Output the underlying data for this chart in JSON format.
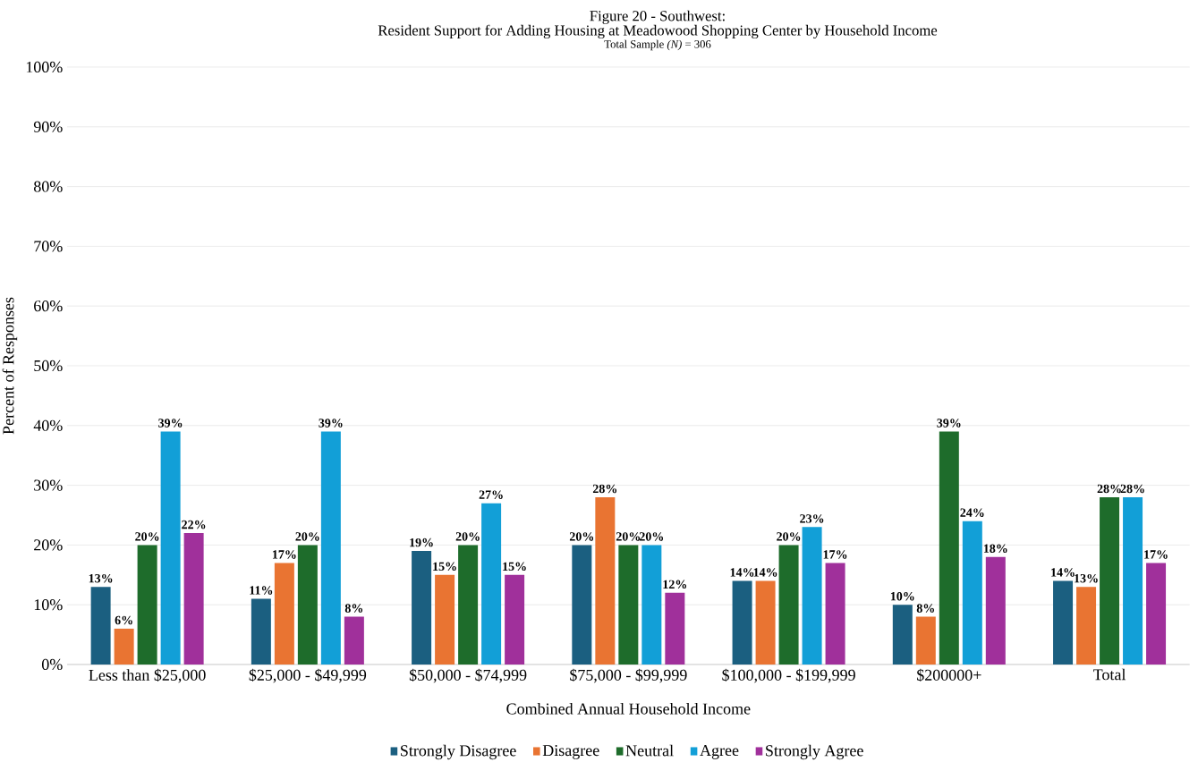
{
  "chart_data": {
    "type": "bar",
    "title": "Figure 20 - Southwest:",
    "subtitle": "Resident Support for Adding Housing at Meadowood Shopping Center by Household Income",
    "annotations": [
      "Total Sample *(N)* = 306"
    ],
    "xlabel": "Combined Annual Household Income",
    "ylabel": "Percent of Responses",
    "categories": [
      "Less than $25,000",
      "$25,000 - $49,999",
      "$50,000 - $74,999",
      "$75,000 - $99,999",
      "$100,000 - $199,999",
      "$200000+",
      "Total"
    ],
    "series": [
      {
        "name": "Strongly Disagree",
        "color": "#1b5f80",
        "values": [
          13,
          11,
          19,
          20,
          14,
          10,
          14
        ],
        "value_labels": [
          "13%",
          "11%",
          "19%",
          "20%",
          "14%",
          "10%",
          "14%"
        ]
      },
      {
        "name": "Disagree",
        "color": "#e97432",
        "values": [
          6,
          17,
          15,
          28,
          14,
          8,
          13
        ],
        "value_labels": [
          "6%",
          "17%",
          "15%",
          "28%",
          "14%",
          "8%",
          "13%"
        ]
      },
      {
        "name": "Neutral",
        "color": "#1e6c2b",
        "values": [
          20,
          20,
          20,
          20,
          20,
          39,
          28
        ],
        "value_labels": [
          "20%",
          "20%",
          "20%",
          "20%",
          "20%",
          "39%",
          "28%"
        ]
      },
      {
        "name": "Agree",
        "color": "#129fd7",
        "values": [
          39,
          39,
          27,
          20,
          23,
          24,
          28
        ],
        "value_labels": [
          "39%",
          "39%",
          "27%",
          "20%",
          "23%",
          "24%",
          "28%"
        ]
      },
      {
        "name": "Strongly Agree",
        "color": "#a0309b",
        "values": [
          22,
          8,
          15,
          12,
          17,
          18,
          17
        ],
        "value_labels": [
          "22%",
          "8%",
          "15%",
          "12%",
          "17%",
          "18%",
          "17%"
        ]
      }
    ],
    "ylim": [
      0,
      100
    ],
    "yticks": [
      {
        "value": 0,
        "label": "0%"
      },
      {
        "value": 10,
        "label": "10%"
      },
      {
        "value": 20,
        "label": "20%"
      },
      {
        "value": 30,
        "label": "30%"
      },
      {
        "value": 40,
        "label": "40%"
      },
      {
        "value": 50,
        "label": "50%"
      },
      {
        "value": 60,
        "label": "60%"
      },
      {
        "value": 70,
        "label": "70%"
      },
      {
        "value": 80,
        "label": "80%"
      },
      {
        "value": 90,
        "label": "90%"
      },
      {
        "value": 100,
        "label": "100%"
      }
    ],
    "grid": "y",
    "legend": "bottom"
  }
}
